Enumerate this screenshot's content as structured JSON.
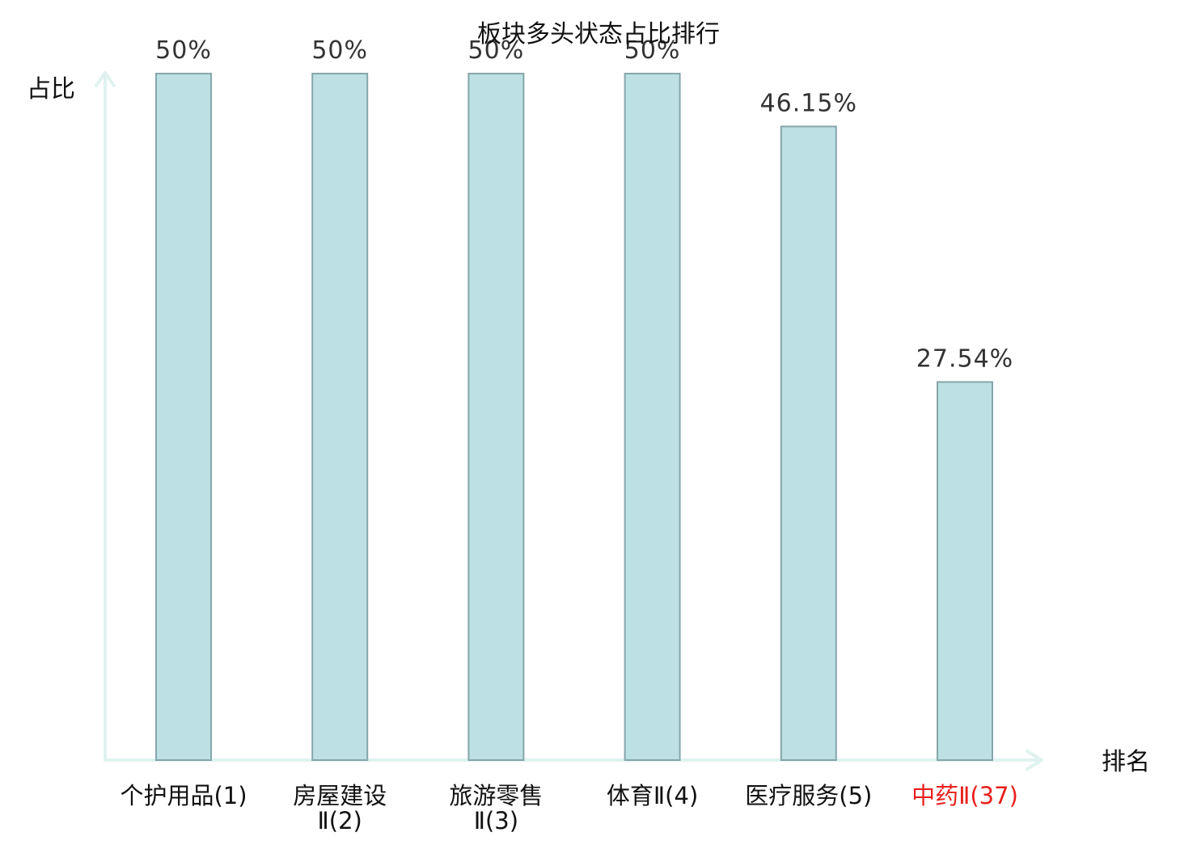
{
  "chart_data": {
    "type": "bar",
    "title": "板块多头状态占比排行",
    "xlabel": "排名",
    "ylabel": "占比",
    "ylim": [
      0,
      50
    ],
    "grid": false,
    "categories": [
      {
        "name": "个护用品",
        "rank": "(1)",
        "lines": [
          "个护用品(1)"
        ],
        "highlight": false
      },
      {
        "name": "房屋建设Ⅱ",
        "rank": "(2)",
        "lines": [
          "房屋建设",
          "Ⅱ(2)"
        ],
        "highlight": false
      },
      {
        "name": "旅游零售Ⅱ",
        "rank": "(3)",
        "lines": [
          "旅游零售",
          "Ⅱ(3)"
        ],
        "highlight": false
      },
      {
        "name": "体育Ⅱ",
        "rank": "(4)",
        "lines": [
          "体育Ⅱ(4)"
        ],
        "highlight": false
      },
      {
        "name": "医疗服务",
        "rank": "(5)",
        "lines": [
          "医疗服务(5)"
        ],
        "highlight": false
      },
      {
        "name": "中药Ⅱ",
        "rank": "(37)",
        "lines": [
          "中药Ⅱ(37)"
        ],
        "highlight": true
      }
    ],
    "values": [
      50,
      50,
      50,
      50,
      46.15,
      27.54
    ],
    "value_labels": [
      "50%",
      "50%",
      "50%",
      "50%",
      "46.15%",
      "27.54%"
    ],
    "colors": {
      "bar_fill": "#bce0e3",
      "bar_stroke": "#86a6ab",
      "axis": "#dff2ef",
      "text": "#111111",
      "value_text": "#333333",
      "highlight": "#e8201c"
    }
  }
}
